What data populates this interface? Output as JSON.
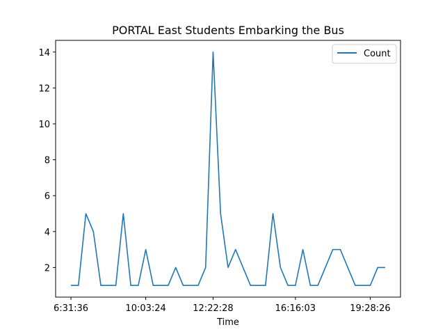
{
  "chart_data": {
    "type": "line",
    "title": "PORTAL East Students Embarking the Bus",
    "xlabel": "Time",
    "ylabel": "",
    "x_tick_labels": [
      "6:31:36",
      "10:03:24",
      "12:22:28",
      "16:16:03",
      "19:28:26"
    ],
    "x_tick_index": [
      0,
      10,
      19,
      30,
      40
    ],
    "y_ticks": [
      2,
      4,
      6,
      8,
      10,
      12,
      14
    ],
    "ylim": [
      0.35,
      14.65
    ],
    "legend_position": "top-right",
    "grid": false,
    "series": [
      {
        "name": "Count",
        "color": "#1f77b4",
        "values": [
          1,
          1,
          5,
          4,
          1,
          1,
          1,
          5,
          1,
          1,
          3,
          1,
          1,
          1,
          2,
          1,
          1,
          1,
          2,
          14,
          5,
          2,
          3,
          2,
          1,
          1,
          1,
          5,
          2,
          1,
          1,
          3,
          1,
          1,
          2,
          3,
          3,
          2,
          1,
          1,
          1,
          2,
          2
        ]
      }
    ]
  }
}
